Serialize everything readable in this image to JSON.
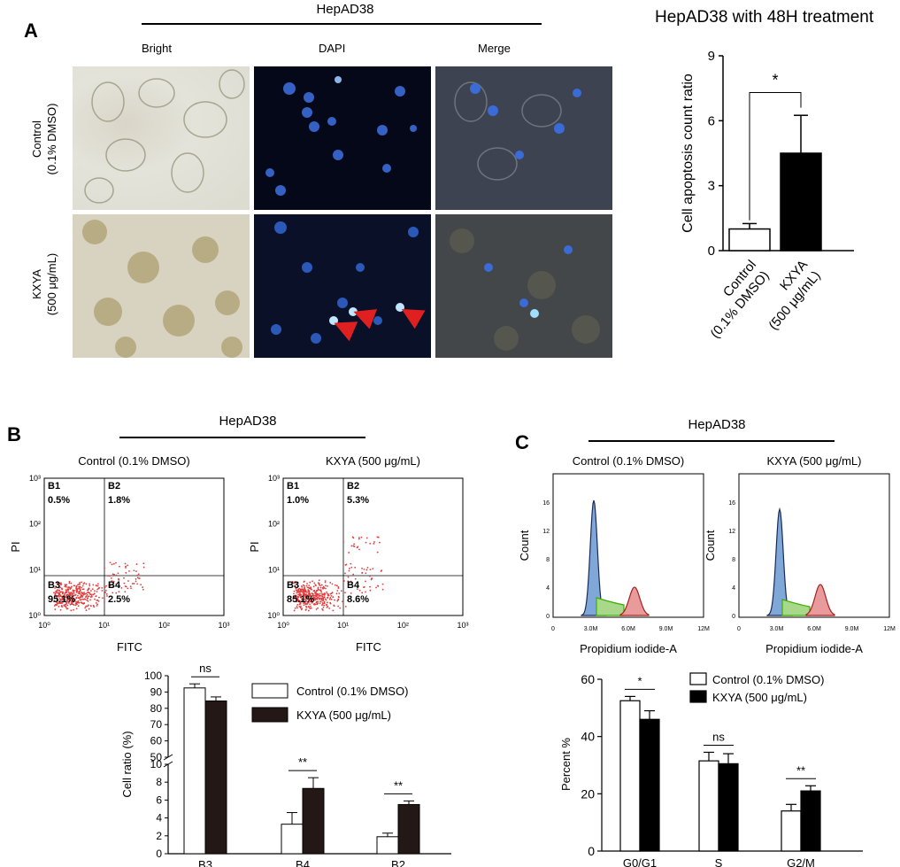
{
  "panelA": {
    "letter": "A",
    "group": "HepAD38",
    "columns": [
      "Bright",
      "DAPI",
      "Merge"
    ],
    "rows": [
      {
        "line1": "Control",
        "line2": "(0.1% DMSO)"
      },
      {
        "line1": "KXYA",
        "line2": "(500 μg/mL)"
      }
    ],
    "chart_data": {
      "type": "bar",
      "title": "HepAD38 with 48H treatment",
      "ylabel": "Cell apoptosis count ratio",
      "ylim": [
        0,
        9
      ],
      "yticks": [
        "0",
        "3",
        "6",
        "9"
      ],
      "categories": [
        {
          "line1": "Control",
          "line2": "(0.1% DMSO)"
        },
        {
          "line1": "KXYA",
          "line2": "(500 μg/mL)"
        }
      ],
      "values": [
        1.0,
        4.5
      ],
      "errors": [
        0.25,
        1.75
      ],
      "fills": [
        "#ffffff",
        "#000000"
      ],
      "significance": "*"
    }
  },
  "panelB": {
    "letter": "B",
    "group": "HepAD38",
    "plots": [
      {
        "title": "Control (0.1% DMSO)",
        "quadrants": [
          {
            "name": "B1",
            "value": "0.5%"
          },
          {
            "name": "B2",
            "value": "1.8%"
          },
          {
            "name": "B3",
            "value": "95.1%"
          },
          {
            "name": "B4",
            "value": "2.5%"
          }
        ]
      },
      {
        "title": "KXYA (500 μg/mL)",
        "quadrants": [
          {
            "name": "B1",
            "value": "1.0%"
          },
          {
            "name": "B2",
            "value": "5.3%"
          },
          {
            "name": "B3",
            "value": "85.1%"
          },
          {
            "name": "B4",
            "value": "8.6%"
          }
        ]
      }
    ],
    "xlabel": "FITC",
    "ylabel": "PI",
    "ticks": [
      "10⁰",
      "10¹",
      "10²",
      "10³"
    ],
    "chart_data": {
      "type": "bar",
      "ylabel": "Cell ratio (%)",
      "yticks_upper": [
        "50",
        "60",
        "70",
        "80",
        "90",
        "100"
      ],
      "yticks_lower": [
        "0",
        "2",
        "4",
        "6",
        "8",
        "10"
      ],
      "categories": [
        "B3",
        "B4",
        "B2"
      ],
      "series": [
        {
          "name": "Control (0.1% DMSO)",
          "values": [
            92.5,
            3.3,
            1.9
          ],
          "errors": [
            2.5,
            1.3,
            0.4
          ],
          "fill": "#ffffff"
        },
        {
          "name": "KXYA (500 μg/mL)",
          "values": [
            84.5,
            7.3,
            5.5
          ],
          "errors": [
            2.5,
            1.2,
            0.4
          ],
          "fill": "#231815"
        }
      ],
      "significance": [
        "ns",
        "**",
        "**"
      ]
    }
  },
  "panelC": {
    "letter": "C",
    "group": "HepAD38",
    "plots": [
      {
        "title": "Control (0.1% DMSO)"
      },
      {
        "title": "KXYA (500 μg/mL)"
      }
    ],
    "xlabel": "Propidium iodide-A",
    "ylabel": "Count",
    "xticks": [
      "0",
      "3.0M",
      "6.0M",
      "9.0M",
      "12M"
    ],
    "chart_data": {
      "type": "bar",
      "ylabel": "Percent %",
      "ylim": [
        0,
        60
      ],
      "yticks": [
        "0",
        "20",
        "40",
        "60"
      ],
      "categories": [
        "G0/G1",
        "S",
        "G2/M"
      ],
      "series": [
        {
          "name": "Control (0.1% DMSO)",
          "values": [
            52.5,
            31.5,
            14.0
          ],
          "errors": [
            1.5,
            3.0,
            2.3
          ],
          "fill": "#ffffff"
        },
        {
          "name": "KXYA (500 μg/mL)",
          "values": [
            46.0,
            30.5,
            21.0
          ],
          "errors": [
            3.0,
            3.5,
            1.8
          ],
          "fill": "#000000"
        }
      ],
      "significance": [
        "*",
        "ns",
        "**"
      ]
    }
  }
}
